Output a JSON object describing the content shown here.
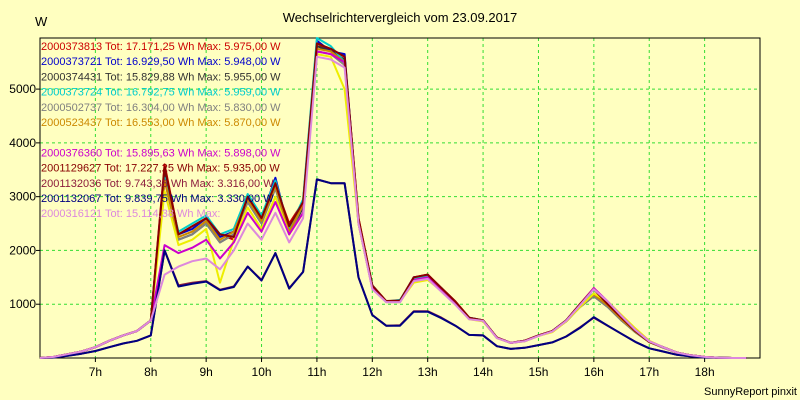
{
  "title": "Wechselrichtervergleich vom 23.09.2017",
  "y_unit": "W",
  "footer": "SunnyReport pinxit",
  "colors": {
    "background": "#ffffc0",
    "grid": "#33dd33",
    "axis": "#000000"
  },
  "chart_data": {
    "type": "line",
    "xlim": [
      6.0,
      19.0
    ],
    "ylim": [
      0,
      5950
    ],
    "x_ticks": [
      7,
      8,
      9,
      10,
      11,
      12,
      13,
      14,
      15,
      16,
      17,
      18
    ],
    "x_tick_labels": [
      "7h",
      "8h",
      "9h",
      "10h",
      "11h",
      "12h",
      "13h",
      "14h",
      "15h",
      "16h",
      "17h",
      "18h"
    ],
    "y_ticks": [
      1000,
      2000,
      3000,
      4000,
      5000
    ],
    "y_tick_labels": [
      "1000",
      "2000",
      "3000",
      "4000",
      "5000"
    ],
    "grid": true,
    "legend_position": "top-left",
    "x": [
      6.0,
      6.25,
      6.5,
      6.75,
      7.0,
      7.25,
      7.5,
      7.75,
      8.0,
      8.25,
      8.5,
      8.75,
      9.0,
      9.25,
      9.5,
      9.75,
      10.0,
      10.25,
      10.5,
      10.75,
      11.0,
      11.25,
      11.5,
      11.75,
      12.0,
      12.25,
      12.5,
      12.75,
      13.0,
      13.25,
      13.5,
      13.75,
      14.0,
      14.25,
      14.5,
      14.75,
      15.0,
      15.25,
      15.5,
      15.75,
      16.0,
      16.25,
      16.5,
      16.75,
      17.0,
      17.25,
      17.5,
      17.75,
      18.0,
      18.25,
      18.5,
      18.75
    ],
    "series": [
      {
        "name": "2000373813 Tot: 17.171,25 Wh Max: 5.975,00 W",
        "color": "#cc0000",
        "values": [
          0,
          20,
          70,
          120,
          200,
          320,
          420,
          500,
          700,
          3600,
          2300,
          2450,
          2600,
          2300,
          2200,
          3000,
          2600,
          3200,
          2500,
          2900,
          5800,
          5750,
          5600,
          2600,
          1350,
          1050,
          1070,
          1500,
          1550,
          1300,
          1050,
          750,
          700,
          380,
          280,
          320,
          420,
          500,
          700,
          1000,
          1300,
          1000,
          750,
          500,
          300,
          200,
          100,
          50,
          20,
          5,
          0,
          0
        ]
      },
      {
        "name": "2000373721 Tot: 16.929,50 Wh Max: 5.948,00 W",
        "color": "#0000cc",
        "values": [
          0,
          20,
          70,
          120,
          200,
          320,
          420,
          500,
          700,
          3500,
          2300,
          2400,
          2600,
          2250,
          2350,
          3000,
          2600,
          3350,
          2350,
          2900,
          5900,
          5700,
          5650,
          2550,
          1350,
          1050,
          1070,
          1500,
          1500,
          1300,
          1000,
          750,
          700,
          380,
          280,
          320,
          420,
          500,
          700,
          1000,
          1200,
          1000,
          700,
          500,
          300,
          200,
          100,
          50,
          20,
          5,
          0,
          0
        ]
      },
      {
        "name": "2000374431 Tot: 15.829,88 Wh Max: 5.955,00 W",
        "color": "#333333",
        "values": [
          0,
          20,
          70,
          120,
          200,
          320,
          420,
          500,
          700,
          3400,
          2200,
          2300,
          2500,
          2150,
          2300,
          2900,
          2500,
          3200,
          2300,
          2800,
          5800,
          5700,
          5550,
          2500,
          1300,
          1050,
          1050,
          1450,
          1500,
          1250,
          1000,
          730,
          700,
          380,
          280,
          320,
          420,
          500,
          680,
          950,
          1150,
          950,
          700,
          480,
          300,
          200,
          100,
          50,
          20,
          5,
          0,
          0
        ]
      },
      {
        "name": "2000373724 Tot: 16.792,75 Wh Max: 5.959,00 W",
        "color": "#00cccc",
        "values": [
          0,
          20,
          70,
          120,
          200,
          320,
          420,
          500,
          700,
          3350,
          2350,
          2500,
          2650,
          2300,
          2400,
          3050,
          2650,
          3300,
          2400,
          2950,
          5950,
          5800,
          5500,
          2550,
          1350,
          1050,
          1080,
          1480,
          1520,
          1300,
          1020,
          750,
          700,
          380,
          280,
          320,
          420,
          500,
          700,
          1000,
          1200,
          1000,
          720,
          500,
          300,
          200,
          100,
          50,
          20,
          5,
          0,
          0
        ]
      },
      {
        "name": "2000502737 Tot: 16.304,00 Wh Max: 5.830,00 W",
        "color": "#808080",
        "values": [
          0,
          20,
          70,
          120,
          200,
          320,
          420,
          500,
          700,
          3300,
          2200,
          2300,
          2500,
          2150,
          2300,
          2900,
          2500,
          3150,
          2300,
          2850,
          5700,
          5650,
          5450,
          2500,
          1300,
          1040,
          1040,
          1450,
          1480,
          1250,
          1000,
          730,
          690,
          370,
          280,
          310,
          410,
          490,
          680,
          950,
          1150,
          950,
          700,
          480,
          300,
          190,
          100,
          50,
          20,
          5,
          0,
          0
        ]
      },
      {
        "name": "2000523437 Tot: 16.553,00 Wh Max: 5.870,00 W",
        "color": "#cc8800",
        "values": [
          0,
          20,
          70,
          120,
          200,
          320,
          420,
          500,
          700,
          3300,
          2250,
          2350,
          2550,
          2200,
          2350,
          2950,
          2550,
          3200,
          2350,
          2850,
          5750,
          5700,
          5500,
          2550,
          1300,
          1050,
          1050,
          1450,
          1500,
          1280,
          1000,
          730,
          700,
          380,
          280,
          320,
          420,
          500,
          690,
          980,
          1180,
          980,
          720,
          490,
          300,
          200,
          100,
          50,
          20,
          5,
          0,
          0
        ]
      },
      {
        "name": "",
        "color": "#eeee00",
        "values": [
          0,
          20,
          70,
          120,
          200,
          320,
          420,
          500,
          700,
          3100,
          2100,
          2200,
          2400,
          1400,
          2200,
          2800,
          2400,
          3000,
          2300,
          2700,
          5650,
          5600,
          5000,
          2500,
          1300,
          1050,
          1050,
          1400,
          1450,
          1250,
          1000,
          720,
          680,
          370,
          280,
          310,
          410,
          480,
          680,
          950,
          1200,
          1050,
          800,
          550,
          320,
          200,
          100,
          50,
          20,
          5,
          0,
          0
        ]
      },
      {
        "name": "2000376360 Tot: 15.895,63 Wh Max: 5.898,00 W",
        "color": "#cc00cc",
        "values": [
          0,
          20,
          70,
          120,
          200,
          320,
          420,
          500,
          700,
          2100,
          1950,
          2050,
          2200,
          1850,
          2150,
          2700,
          2350,
          2900,
          2300,
          2700,
          5700,
          5650,
          5500,
          2550,
          1300,
          1050,
          1050,
          1450,
          1500,
          1250,
          1000,
          730,
          700,
          380,
          280,
          320,
          420,
          500,
          700,
          1000,
          1300,
          1050,
          780,
          520,
          310,
          200,
          100,
          50,
          20,
          5,
          0,
          0
        ]
      },
      {
        "name": "2001129627 Tot: 17.227,25 Wh Max: 5.935,00 W",
        "color": "#880000",
        "values": [
          0,
          20,
          70,
          120,
          200,
          320,
          420,
          500,
          700,
          3550,
          2300,
          2450,
          2600,
          2300,
          2250,
          3000,
          2600,
          3250,
          2450,
          2900,
          5850,
          5750,
          5600,
          2600,
          1350,
          1060,
          1070,
          1500,
          1550,
          1300,
          1050,
          750,
          700,
          380,
          280,
          320,
          420,
          500,
          700,
          1000,
          1280,
          1000,
          750,
          500,
          300,
          200,
          100,
          50,
          20,
          5,
          0,
          0
        ]
      },
      {
        "name": "2001132036 Tot: 9.743,38 Wh Max: 3.316,00 W",
        "color": "#8c1c3c",
        "values": [
          0,
          10,
          40,
          80,
          130,
          200,
          270,
          320,
          420,
          2000,
          1350,
          1400,
          1430,
          1270,
          1330,
          1700,
          1450,
          1950,
          1300,
          1600,
          3320,
          3250,
          3250,
          1500,
          800,
          600,
          610,
          870,
          870,
          750,
          600,
          430,
          420,
          220,
          170,
          190,
          240,
          290,
          400,
          570,
          750,
          600,
          450,
          300,
          180,
          120,
          60,
          30,
          10,
          5,
          0,
          0
        ]
      },
      {
        "name": "2001132067 Tot: 9.839,75 Wh Max: 3.330,00 W",
        "color": "#000080",
        "values": [
          0,
          10,
          40,
          80,
          130,
          200,
          270,
          320,
          420,
          2000,
          1330,
          1380,
          1420,
          1260,
          1320,
          1700,
          1440,
          1950,
          1290,
          1600,
          3320,
          3250,
          3250,
          1500,
          800,
          600,
          600,
          860,
          860,
          740,
          600,
          430,
          420,
          220,
          170,
          190,
          240,
          290,
          400,
          560,
          760,
          600,
          450,
          300,
          180,
          120,
          60,
          30,
          10,
          5,
          0,
          0
        ]
      },
      {
        "name": "2000316121 Tot: 15.114,38 Wh Max:",
        "color": "#dd88dd",
        "values": [
          0,
          20,
          70,
          120,
          200,
          320,
          420,
          500,
          700,
          1550,
          1700,
          1800,
          1850,
          1650,
          2000,
          2500,
          2200,
          2700,
          2150,
          2600,
          5600,
          5550,
          5400,
          2500,
          1280,
          1040,
          1040,
          1430,
          1470,
          1230,
          990,
          720,
          690,
          370,
          280,
          310,
          410,
          490,
          690,
          980,
          1280,
          1050,
          780,
          520,
          310,
          200,
          100,
          50,
          20,
          5,
          0,
          0
        ]
      }
    ]
  }
}
